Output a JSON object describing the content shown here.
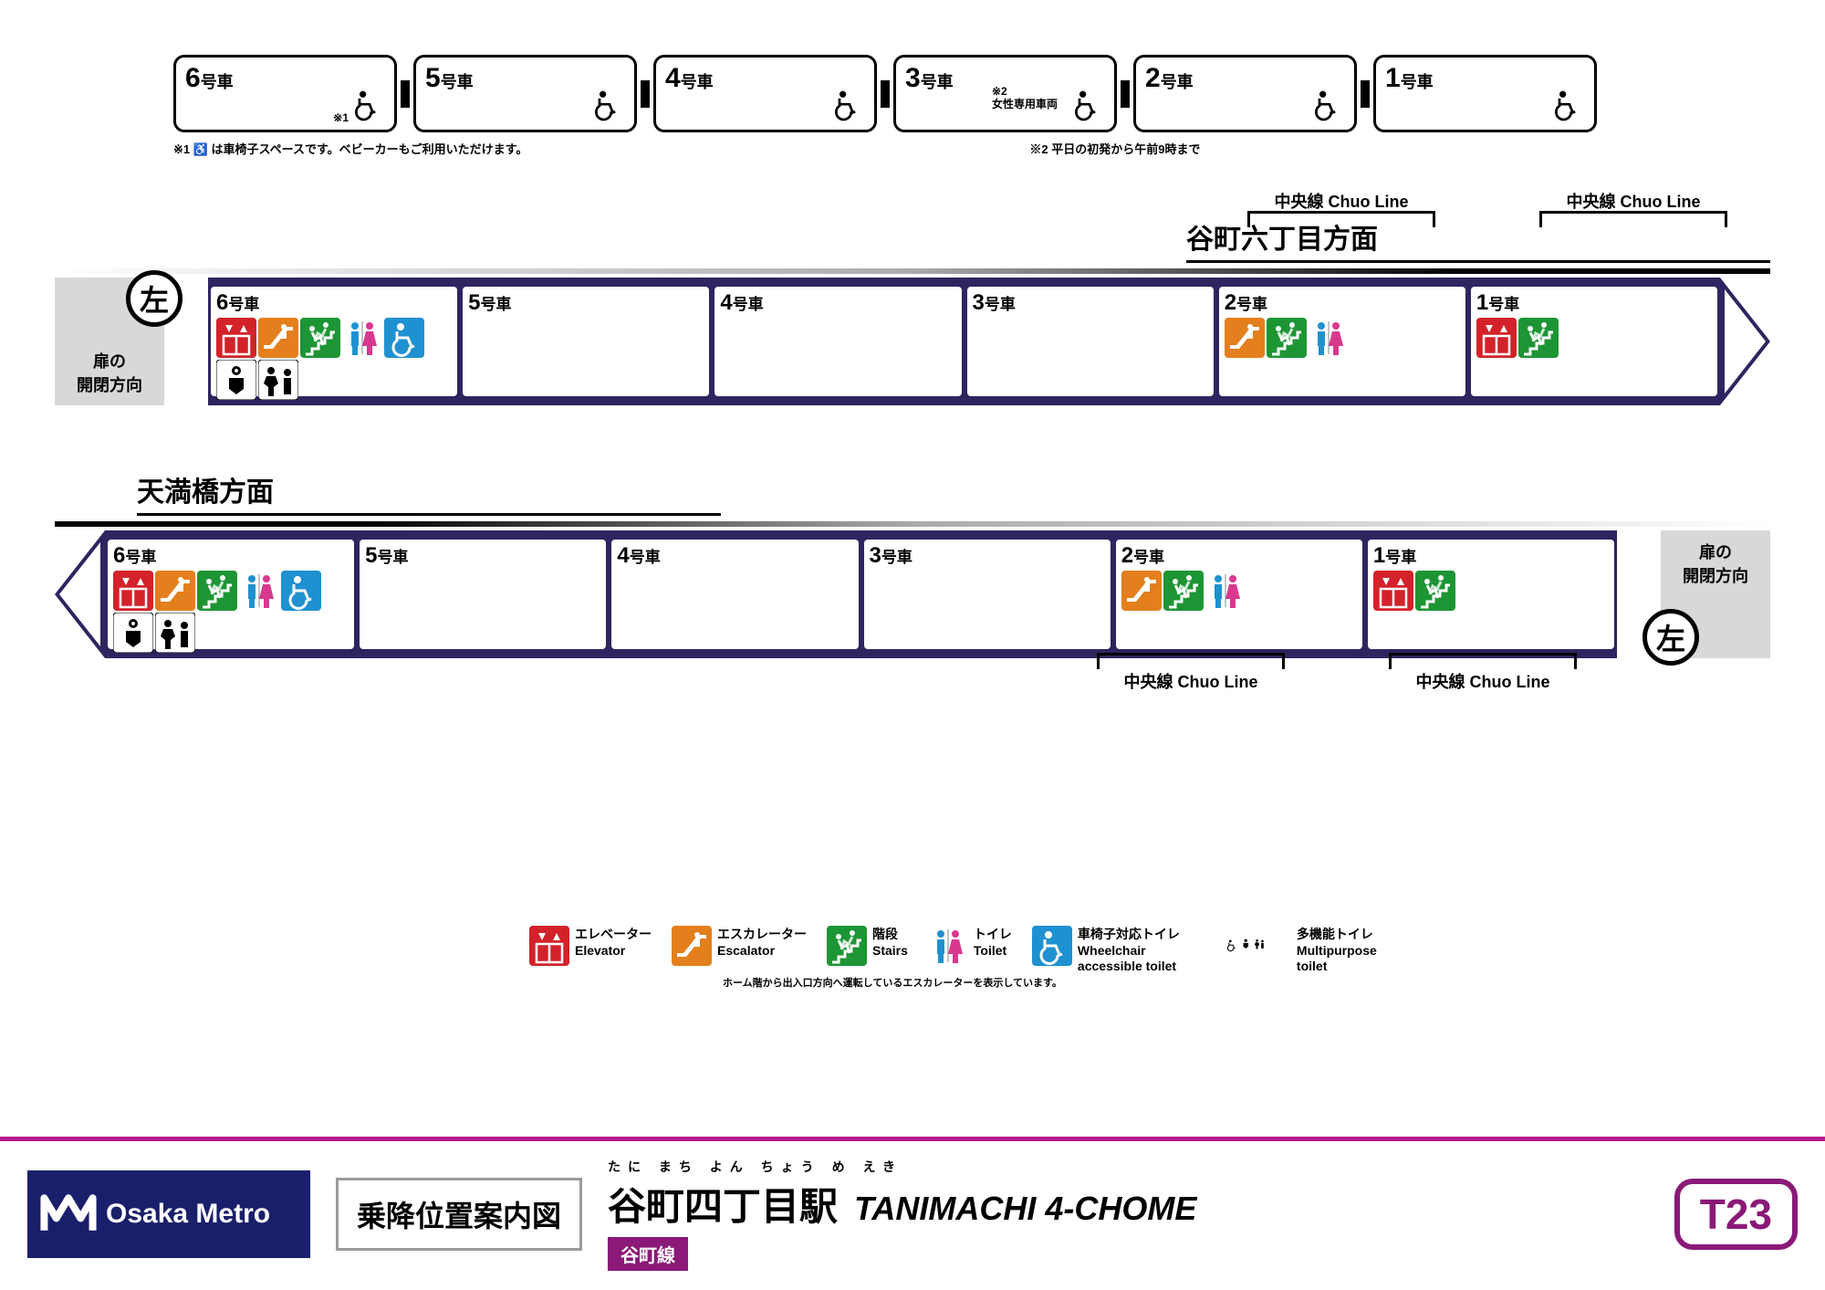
{
  "colors": {
    "line": "#2e2560",
    "accent": "#b7198f",
    "lineTag": "#8a1978",
    "elevator": "#d32229",
    "escalator": "#e37f1c",
    "stairs": "#1d9534",
    "toilet_m": "#1f91d0",
    "toilet_f": "#d9388f",
    "wc_toilet": "#1f91d0",
    "grey": "#d8d8d8"
  },
  "train": {
    "cars": [
      {
        "n": "6",
        "note1": "※1"
      },
      {
        "n": "5"
      },
      {
        "n": "4"
      },
      {
        "n": "3",
        "note2_l1": "※2",
        "note2_l2": "女性専用車両"
      },
      {
        "n": "2"
      },
      {
        "n": "1"
      }
    ],
    "unit": "号車",
    "footnote1": "※1 ♿ は車椅子スペースです。ベビーカーもご利用いただけます。",
    "footnote2": "※2 平日の初発から午前9時まで"
  },
  "dir1": {
    "label": "谷町六丁目方面",
    "side": "左",
    "side_label_l1": "扉の",
    "side_label_l2": "開閉方向",
    "transfers": [
      {
        "text": "中央線 Chuo Line"
      },
      {
        "text": "中央線 Chuo Line"
      }
    ],
    "cars": [
      {
        "n": "6",
        "icons": [
          "elevator",
          "escalator",
          "stairs",
          "toilet",
          "wc_toilet",
          "baby",
          "multi"
        ]
      },
      {
        "n": "5",
        "icons": []
      },
      {
        "n": "4",
        "icons": []
      },
      {
        "n": "3",
        "icons": []
      },
      {
        "n": "2",
        "icons": [
          "escalator",
          "stairs",
          "toilet"
        ]
      },
      {
        "n": "1",
        "icons": [
          "elevator",
          "stairs"
        ]
      }
    ]
  },
  "dir2": {
    "label": "天満橋方面",
    "side": "左",
    "side_label_l1": "扉の",
    "side_label_l2": "開閉方向",
    "transfers": [
      {
        "text": "中央線 Chuo Line"
      },
      {
        "text": "中央線 Chuo Line"
      }
    ],
    "cars": [
      {
        "n": "6",
        "icons": [
          "elevator",
          "escalator",
          "stairs",
          "toilet",
          "wc_toilet",
          "baby",
          "multi"
        ]
      },
      {
        "n": "5",
        "icons": []
      },
      {
        "n": "4",
        "icons": []
      },
      {
        "n": "3",
        "icons": []
      },
      {
        "n": "2",
        "icons": [
          "escalator",
          "stairs",
          "toilet"
        ]
      },
      {
        "n": "1",
        "icons": [
          "elevator",
          "stairs"
        ]
      }
    ]
  },
  "legend": {
    "items": [
      {
        "icon": "elevator",
        "jp": "エレベーター",
        "en": "Elevator"
      },
      {
        "icon": "escalator",
        "jp": "エスカレーター",
        "en": "Escalator"
      },
      {
        "icon": "stairs",
        "jp": "階段",
        "en": "Stairs"
      },
      {
        "icon": "toilet",
        "jp": "トイレ",
        "en": "Toilet"
      },
      {
        "icon": "wc_toilet",
        "jp": "車椅子対応トイレ",
        "en": "Wheelchair\naccessible toilet"
      },
      {
        "icon": "multi_leg",
        "jp": "多機能トイレ",
        "en": "Multipurpose\ntoilet"
      }
    ],
    "note": "ホーム階から出入口方向へ運転しているエスカレーターを表示しています。"
  },
  "footer": {
    "brand": "Osaka Metro",
    "guide": "乗降位置案内図",
    "ruby": "たに まち よん ちょう め  えき",
    "station_jp": "谷町四丁目駅",
    "station_en": "TANIMACHI 4-CHOME",
    "line": "谷町線",
    "code": "T23"
  }
}
